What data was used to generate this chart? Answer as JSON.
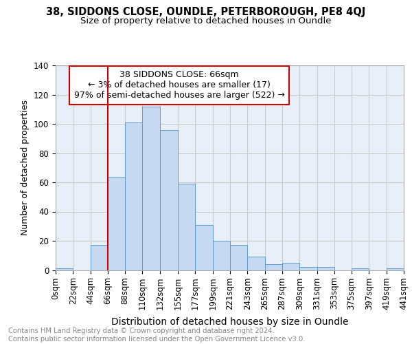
{
  "title_line1": "38, SIDDONS CLOSE, OUNDLE, PETERBOROUGH, PE8 4QJ",
  "title_line2": "Size of property relative to detached houses in Oundle",
  "xlabel": "Distribution of detached houses by size in Oundle",
  "ylabel": "Number of detached properties",
  "bin_edges": [
    0,
    22,
    44,
    66,
    88,
    110,
    132,
    155,
    177,
    199,
    221,
    243,
    265,
    287,
    309,
    331,
    353,
    375,
    397,
    419,
    441
  ],
  "bar_heights": [
    1,
    0,
    17,
    64,
    101,
    112,
    96,
    59,
    31,
    20,
    17,
    9,
    4,
    5,
    2,
    2,
    0,
    1,
    0,
    1
  ],
  "bar_facecolor": "#c6d9f0",
  "bar_edgecolor": "#5b9bd5",
  "vline_x": 66,
  "vline_color": "#cc0000",
  "annotation_box_text": "38 SIDDONS CLOSE: 66sqm\n← 3% of detached houses are smaller (17)\n97% of semi-detached houses are larger (522) →",
  "annotation_box_facecolor": "#ffffff",
  "annotation_box_edgecolor": "#cc0000",
  "ylim": [
    0,
    140
  ],
  "yticks": [
    0,
    20,
    40,
    60,
    80,
    100,
    120,
    140
  ],
  "tick_labels": [
    "0sqm",
    "22sqm",
    "44sqm",
    "66sqm",
    "88sqm",
    "110sqm",
    "132sqm",
    "155sqm",
    "177sqm",
    "199sqm",
    "221sqm",
    "243sqm",
    "265sqm",
    "287sqm",
    "309sqm",
    "331sqm",
    "353sqm",
    "375sqm",
    "397sqm",
    "419sqm",
    "441sqm"
  ],
  "grid_color": "#cccccc",
  "bg_color": "#e8eff8",
  "footer_text": "Contains HM Land Registry data © Crown copyright and database right 2024.\nContains public sector information licensed under the Open Government Licence v3.0.",
  "title_fontsize": 10.5,
  "subtitle_fontsize": 9.5,
  "xlabel_fontsize": 10,
  "ylabel_fontsize": 9,
  "tick_fontsize": 8.5,
  "annotation_fontsize": 9,
  "footer_fontsize": 7.2
}
